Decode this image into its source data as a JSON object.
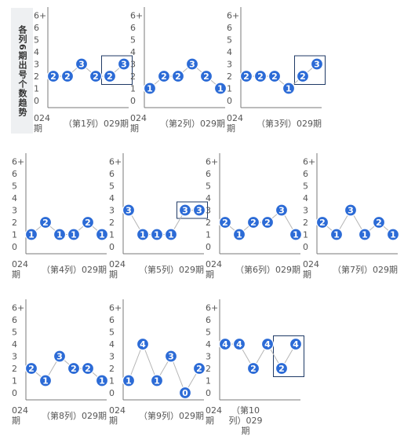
{
  "side_title": "各列6期出号个数趋势",
  "chart_data": {
    "type": "line",
    "y_ticks": [
      "6+",
      "6",
      "5",
      "4",
      "3",
      "2",
      "1",
      "0"
    ],
    "ylim": [
      0,
      7
    ],
    "x_start_label": "024\n期",
    "x_end_label": "029期",
    "grid": false,
    "series_color": "#2c6bd6",
    "line_color": "#b5b5b5",
    "highlight_color": "#1f3a66",
    "panels": [
      {
        "label": "（第1列）029期",
        "values": [
          2,
          2,
          3,
          2,
          2,
          3
        ],
        "highlight": [
          4,
          5
        ]
      },
      {
        "label": "（第2列）029期",
        "values": [
          1,
          2,
          2,
          3,
          2,
          1
        ],
        "highlight": []
      },
      {
        "label": "（第3列）029期",
        "values": [
          2,
          2,
          2,
          1,
          2,
          3
        ],
        "highlight": [
          4,
          5
        ]
      },
      {
        "label": "（第4列）029期",
        "values": [
          1,
          2,
          1,
          1,
          2,
          1
        ],
        "highlight": []
      },
      {
        "label": "（第5列）029期",
        "values": [
          3,
          1,
          1,
          1,
          3,
          3
        ],
        "highlight": [
          4,
          5
        ]
      },
      {
        "label": "（第6列）029期",
        "values": [
          2,
          1,
          2,
          2,
          3,
          1
        ],
        "highlight": []
      },
      {
        "label": "（第7列）029期",
        "values": [
          2,
          1,
          3,
          1,
          2,
          1
        ],
        "highlight": []
      },
      {
        "label": "（第8列）029期",
        "values": [
          2,
          1,
          3,
          2,
          2,
          1
        ],
        "highlight": []
      },
      {
        "label": "（第9列）029期",
        "values": [
          1,
          4,
          1,
          3,
          0,
          2
        ],
        "highlight": []
      },
      {
        "label": "（第10\n列）029\n期",
        "values": [
          4,
          4,
          2,
          4,
          2,
          4
        ],
        "highlight": [
          4,
          5
        ]
      }
    ]
  }
}
